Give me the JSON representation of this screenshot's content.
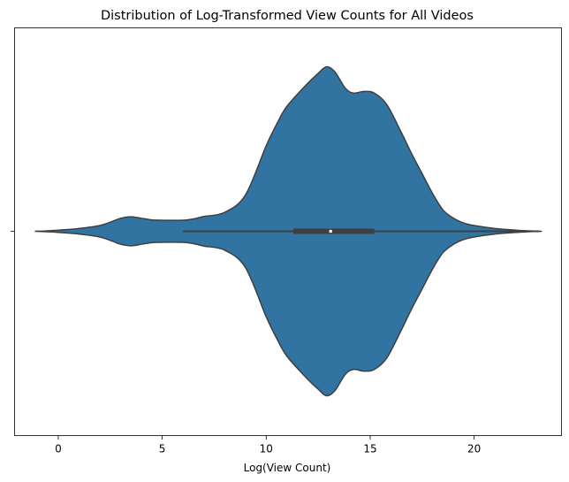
{
  "chart_data": {
    "type": "violin",
    "title": "Distribution of Log-Transformed View Counts for All Videos",
    "xlabel": "Log(View Count)",
    "ylabel": "",
    "xlim": [
      -2.1,
      24.2
    ],
    "xticks": [
      0,
      5,
      10,
      15,
      20
    ],
    "xtick_labels": [
      "0",
      "5",
      "10",
      "15",
      "20"
    ],
    "color": "#3274a1",
    "edge_color": "#3f3f3f",
    "grid": false,
    "density_profile": {
      "x": [
        -1.1,
        -0.5,
        0,
        1,
        2,
        2.6,
        3,
        3.5,
        4,
        4.5,
        5,
        6,
        6.5,
        7,
        8,
        9,
        10,
        10.5,
        11,
        12,
        12.5,
        12.9,
        13.3,
        13.8,
        14.2,
        14.7,
        15.2,
        15.8,
        16.5,
        17,
        17.5,
        18,
        18.5,
        19,
        19.5,
        20,
        21,
        22,
        23.1
      ],
      "half_width": [
        0,
        0.003,
        0.007,
        0.017,
        0.035,
        0.06,
        0.079,
        0.088,
        0.079,
        0.069,
        0.067,
        0.067,
        0.075,
        0.09,
        0.115,
        0.22,
        0.52,
        0.65,
        0.76,
        0.9,
        0.96,
        1.0,
        0.97,
        0.87,
        0.84,
        0.85,
        0.84,
        0.77,
        0.6,
        0.47,
        0.35,
        0.23,
        0.13,
        0.08,
        0.05,
        0.035,
        0.017,
        0.007,
        0
      ]
    },
    "box": {
      "whisker_low": 6.0,
      "q1": 11.3,
      "median": 13.1,
      "q3": 15.2,
      "whisker_high": 23.1
    }
  }
}
